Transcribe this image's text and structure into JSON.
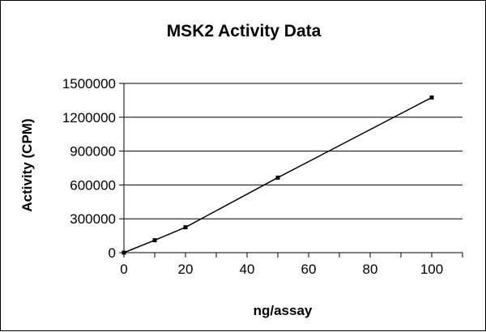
{
  "chart_data": {
    "type": "line",
    "title": "MSK2 Activity Data",
    "xlabel": "ng/assay",
    "ylabel": "Activity (CPM)",
    "x": [
      0,
      10,
      20,
      50,
      100
    ],
    "series": [
      {
        "values": [
          0,
          110000,
          225000,
          665000,
          1375000
        ]
      }
    ],
    "xlim": [
      0,
      110
    ],
    "ylim": [
      0,
      1500000
    ],
    "x_ticks": [
      "0",
      "20",
      "40",
      "60",
      "80",
      "100"
    ],
    "y_ticks": [
      "0",
      "300000",
      "600000",
      "900000",
      "1200000",
      "1500000"
    ],
    "grid": "horizontal",
    "legend": "none",
    "colors": {
      "line": "#000000",
      "marker": "#000000",
      "grid": "#000000",
      "background": "#ffffff"
    }
  }
}
